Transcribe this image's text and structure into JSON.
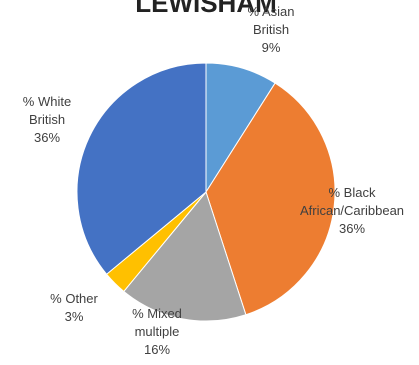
{
  "chart_data": {
    "type": "pie",
    "title": "LEWISHAM",
    "categories": [
      "% Asian British",
      "% Black African/Caribbean",
      "% Mixed multiple",
      "% Other",
      "% White British"
    ],
    "values": [
      9,
      36,
      16,
      3,
      36
    ],
    "colors": [
      "#5B9BD5",
      "#ED7D31",
      "#A5A5A5",
      "#FFC000",
      "#4472C4"
    ],
    "labels": [
      {
        "lines": [
          "% Asian",
          "British",
          "9%"
        ]
      },
      {
        "lines": [
          "% Black",
          "African/Caribbean",
          "36%"
        ]
      },
      {
        "lines": [
          "% Mixed",
          "multiple",
          "16%"
        ]
      },
      {
        "lines": [
          "% Other",
          "3%"
        ]
      },
      {
        "lines": [
          "% White",
          "British",
          "36%"
        ]
      }
    ],
    "start_angle": "12 o'clock",
    "direction": "clockwise",
    "legend": "none"
  }
}
